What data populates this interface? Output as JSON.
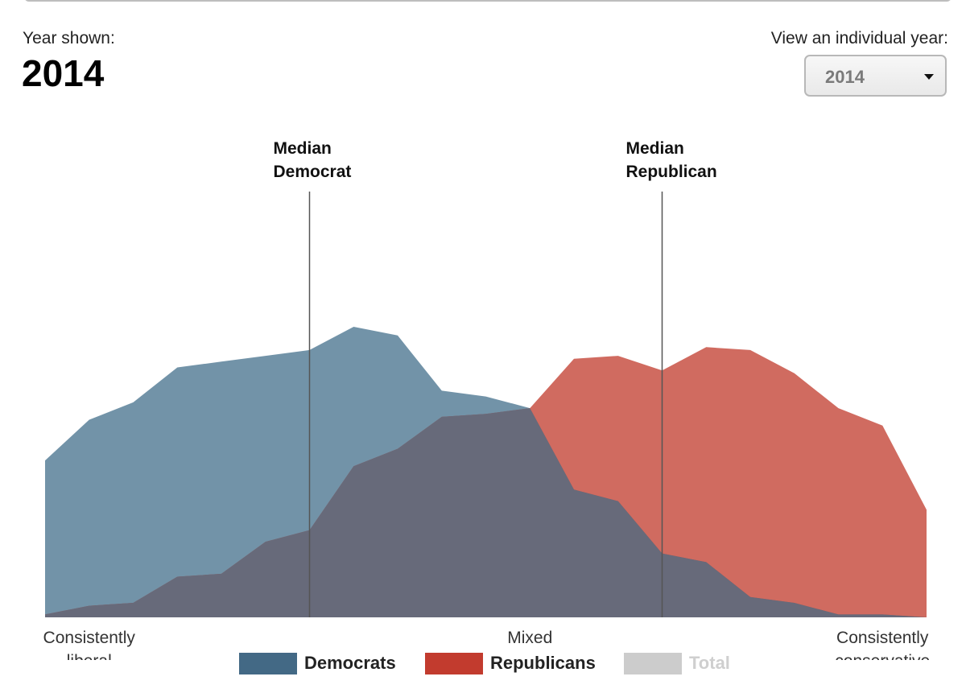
{
  "header": {
    "year_label": "Year shown:",
    "year_value": "2014",
    "view_label": "View an individual year:",
    "select_value": "2014"
  },
  "colors": {
    "democrats_area": "#4a7590",
    "republicans_area": "#c0392b",
    "overlap_area": "#676a7a",
    "legend_democrats": "#436985",
    "legend_republicans": "#c23b2e",
    "legend_total": "#cccccc"
  },
  "legend": {
    "democrats": "Democrats",
    "republicans": "Republicans",
    "total": "Total"
  },
  "chart_data": {
    "type": "area",
    "x_labels": [
      {
        "text": [
          "Consistently",
          "liberal"
        ],
        "at": 1
      },
      {
        "text": [
          "Mixed"
        ],
        "at": 11
      },
      {
        "text": [
          "Consistently",
          "conservative"
        ],
        "at": 19
      }
    ],
    "x": [
      0,
      1,
      2,
      3,
      4,
      5,
      6,
      7,
      8,
      9,
      10,
      11,
      12,
      13,
      14,
      15,
      16,
      17,
      18,
      19,
      20
    ],
    "ylim": [
      0,
      100
    ],
    "series": [
      {
        "name": "Democrats",
        "values": [
          54,
          68,
          74,
          86,
          88,
          90,
          92,
          100,
          97,
          78,
          76,
          72,
          44,
          40,
          22,
          19,
          7,
          5,
          1,
          1,
          0
        ]
      },
      {
        "name": "Republicans",
        "values": [
          1,
          4,
          5,
          14,
          15,
          26,
          30,
          52,
          58,
          69,
          70,
          72,
          89,
          90,
          85,
          93,
          92,
          84,
          72,
          66,
          37
        ]
      }
    ],
    "medians": [
      {
        "label": [
          "Median",
          "Democrat"
        ],
        "x": 6
      },
      {
        "label": [
          "Median",
          "Republican"
        ],
        "x": 14
      }
    ],
    "grid": false,
    "legend_position": "bottom"
  }
}
